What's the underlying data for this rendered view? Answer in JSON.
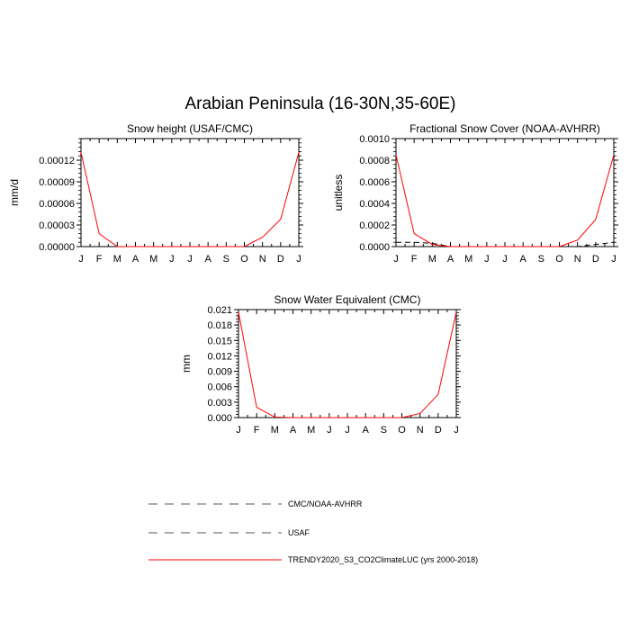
{
  "figure": {
    "title": "Arabian Peninsula (16-30N,35-60E)"
  },
  "legend": {
    "position": "bottom-center",
    "entries": [
      {
        "label": "CMC/NOAA-AVHRR",
        "style": "dashed",
        "color": "#000000"
      },
      {
        "label": "USAF",
        "style": "dashed",
        "color": "#000000"
      },
      {
        "label": "TRENDY2020_S3_CO2ClimateLUC (yrs 2000-2018)",
        "style": "solid",
        "color": "#ff0000"
      }
    ]
  },
  "chart_data": [
    {
      "type": "line",
      "title": "Snow height (USAF/CMC)",
      "ylabel": "mm/d",
      "xlabel": "",
      "categories": [
        "J",
        "F",
        "M",
        "A",
        "M",
        "J",
        "J",
        "A",
        "S",
        "O",
        "N",
        "D",
        "J"
      ],
      "ylim": [
        0,
        0.00015
      ],
      "yticks": [
        0,
        3e-05,
        6e-05,
        9e-05,
        0.00012
      ],
      "ytick_labels": [
        "0.00000",
        "0.00003",
        "0.00006",
        "0.00009",
        "0.00012"
      ],
      "grid": false,
      "series": [
        {
          "name": "TRENDY2020_S3_CO2ClimateLUC (yrs 2000-2018)",
          "color": "#ff0000",
          "dash": "solid",
          "values": [
            0.000131,
            1.8e-05,
            0.0,
            0.0,
            0.0,
            0.0,
            0.0,
            0.0,
            0.0,
            0.0,
            1.3e-05,
            3.8e-05,
            0.000131
          ]
        },
        {
          "name": "USAF",
          "color": "#000000",
          "dash": "dashed",
          "values": [
            0.0,
            0.0,
            0.0,
            0.0,
            0.0,
            0.0,
            0.0,
            0.0,
            0.0,
            0.0,
            0.0,
            0.0,
            0.0
          ]
        }
      ]
    },
    {
      "type": "line",
      "title": "Fractional Snow Cover (NOAA-AVHRR)",
      "ylabel": "unitless",
      "xlabel": "",
      "categories": [
        "J",
        "F",
        "M",
        "A",
        "M",
        "J",
        "J",
        "A",
        "S",
        "O",
        "N",
        "D",
        "J"
      ],
      "ylim": [
        0,
        0.001
      ],
      "yticks": [
        0,
        0.0002,
        0.0004,
        0.0006,
        0.0008,
        0.001
      ],
      "ytick_labels": [
        "0.0000",
        "0.0002",
        "0.0004",
        "0.0006",
        "0.0008",
        "0.0010"
      ],
      "grid": false,
      "series": [
        {
          "name": "TRENDY2020_S3_CO2ClimateLUC (yrs 2000-2018)",
          "color": "#ff0000",
          "dash": "solid",
          "values": [
            0.00085,
            0.00012,
            2e-05,
            0.0,
            0.0,
            0.0,
            0.0,
            0.0,
            0.0,
            0.0,
            6e-05,
            0.00025,
            0.00085
          ]
        },
        {
          "name": "CMC/NOAA-AVHRR",
          "color": "#000000",
          "dash": "dashed",
          "values": [
            4e-05,
            4e-05,
            3e-05,
            0.0,
            0.0,
            0.0,
            0.0,
            0.0,
            0.0,
            0.0,
            0.0,
            2e-05,
            4e-05
          ]
        }
      ]
    },
    {
      "type": "line",
      "title": "Snow Water Equivalent (CMC)",
      "ylabel": "mm",
      "xlabel": "",
      "categories": [
        "J",
        "F",
        "M",
        "A",
        "M",
        "J",
        "J",
        "A",
        "S",
        "O",
        "N",
        "D",
        "J"
      ],
      "ylim": [
        0,
        0.021
      ],
      "yticks": [
        0,
        0.003,
        0.006,
        0.009,
        0.012,
        0.015,
        0.018,
        0.021
      ],
      "ytick_labels": [
        "0.000",
        "0.003",
        "0.006",
        "0.009",
        "0.012",
        "0.015",
        "0.018",
        "0.021"
      ],
      "grid": false,
      "series": [
        {
          "name": "TRENDY2020_S3_CO2ClimateLUC (yrs 2000-2018)",
          "color": "#ff0000",
          "dash": "solid",
          "values": [
            0.0205,
            0.002,
            0.0001,
            0.0,
            0.0,
            0.0,
            0.0,
            0.0,
            0.0,
            0.0,
            0.0008,
            0.0045,
            0.0205
          ]
        },
        {
          "name": "CMC/NOAA-AVHRR",
          "color": "#000000",
          "dash": "dashed",
          "values": [
            0.0,
            0.0,
            0.0,
            0.0,
            0.0,
            0.0,
            0.0,
            0.0,
            0.0,
            0.0,
            0.0,
            0.0,
            0.0
          ]
        }
      ]
    }
  ]
}
